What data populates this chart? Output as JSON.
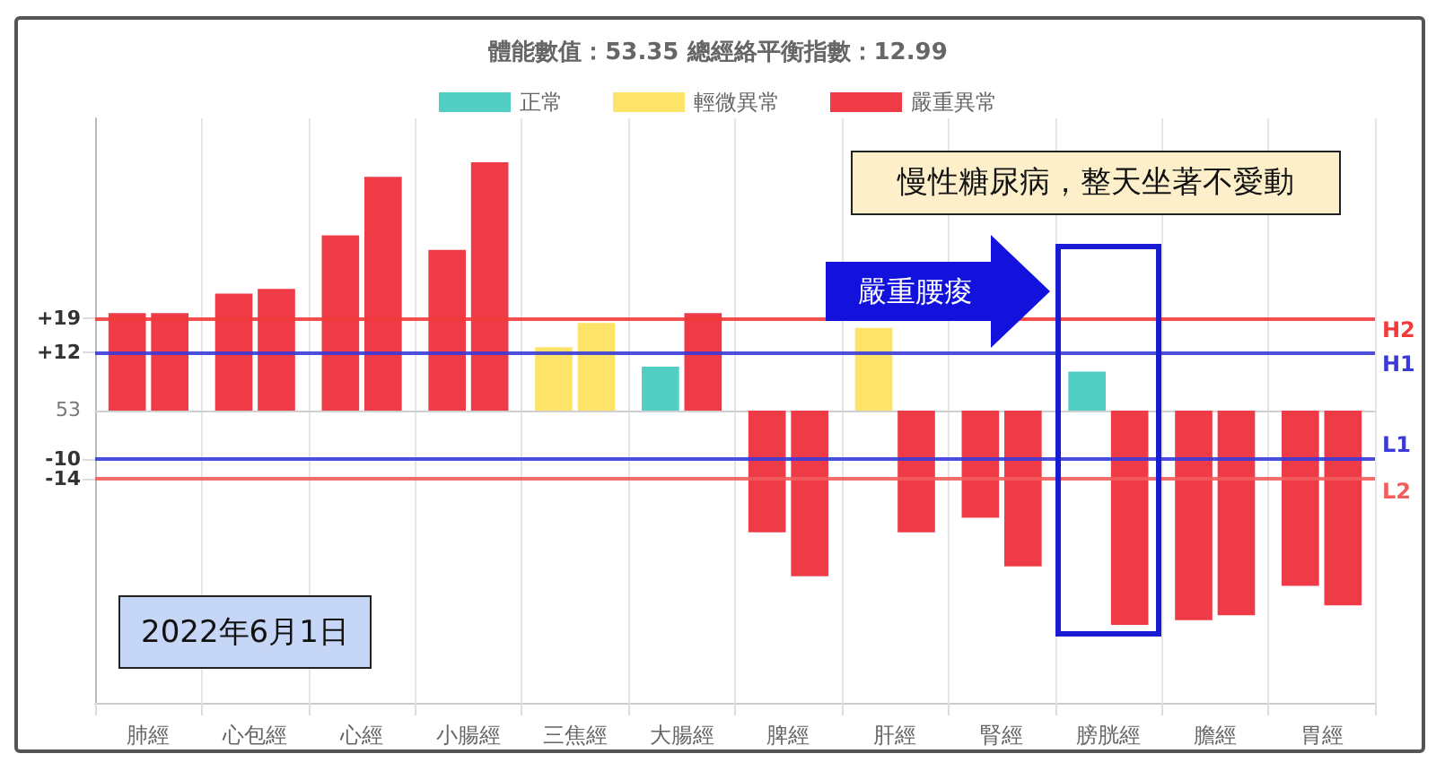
{
  "chart_data": {
    "type": "bar",
    "title": "體能數值：53.35 總經絡平衡指數：12.99",
    "categories": [
      "肺經",
      "心包經",
      "心經",
      "小腸經",
      "三焦經",
      "大腸經",
      "脾經",
      "肝經",
      "腎經",
      "膀胱經",
      "膽經",
      "胃經"
    ],
    "series": [
      {
        "name": "正常",
        "color": "#52cfc5",
        "values": [
          null,
          null,
          null,
          null,
          null,
          null,
          null,
          null,
          null,
          null,
          null,
          null
        ]
      },
      {
        "name": "輕微異常",
        "color": "#fde468",
        "values": [
          null,
          null,
          null,
          null,
          null,
          null,
          null,
          null,
          null,
          null,
          null,
          null
        ]
      },
      {
        "name": "嚴重異常",
        "color": "#ee3b47",
        "values": [
          null,
          null,
          null,
          null,
          null,
          null,
          null,
          null,
          null,
          null,
          null,
          null
        ]
      },
      {
        "colors": [
          "#ee3b47",
          "#ee3b47",
          "#ee3b47",
          "#ee3b47",
          "#fde468",
          "#52cfc5",
          "#ee3b47",
          "#fde468",
          "#ee3b47",
          "#52cfc5",
          "#ee3b47",
          "#ee3b47"
        ],
        "values": [
          20,
          24,
          36,
          33,
          13,
          9,
          -25,
          17,
          -22,
          8,
          -43,
          -36
        ]
      },
      {
        "colors": [
          "#ee3b47",
          "#ee3b47",
          "#ee3b47",
          "#ee3b47",
          "#fde468",
          "#ee3b47",
          "#ee3b47",
          "#ee3b47",
          "#ee3b47",
          "#ee3b47",
          "#ee3b47",
          "#ee3b47"
        ],
        "values": [
          20,
          25,
          48,
          51,
          18,
          20,
          -34,
          -25,
          -32,
          -44,
          -42,
          -40
        ]
      }
    ],
    "ylim": [
      -60,
      60
    ],
    "yticks": [
      -14,
      -10,
      {
        "value": 12,
        "label": "+12"
      },
      {
        "value": 19,
        "label": "+19"
      }
    ],
    "ref_lines": [
      {
        "axis": "y",
        "value": 19,
        "label": "H2",
        "color": "#f23a3a"
      },
      {
        "axis": "y",
        "value": 12,
        "label": "H1",
        "color": "#3a3ad8"
      },
      {
        "axis": "y",
        "value": -10,
        "label": "L1",
        "color": "#3a3ad8"
      },
      {
        "axis": "y",
        "value": -14,
        "label": "L2",
        "color": "#f25c5c"
      }
    ],
    "annotations": [
      "慢性糖尿病，整天坐著不愛動",
      "2022年6月1日",
      "嚴重腰痠",
      "53"
    ],
    "grid": "x",
    "legend": "top"
  }
}
